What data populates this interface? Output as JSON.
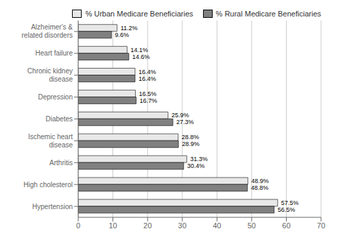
{
  "chart_data": {
    "type": "bar",
    "orientation": "horizontal",
    "categories": [
      "Alzheimer's &\nrelated disorders",
      "Heart failure",
      "Chronic kidney\ndisease",
      "Depression",
      "Diabetes",
      "Ischemic heart\ndisease",
      "Arthritis",
      "High cholesterol",
      "Hypertension"
    ],
    "series": [
      {
        "name": "% Urban Medicare Beneficiaries",
        "color": "#e8e8e8",
        "values": [
          11.2,
          14.1,
          16.4,
          16.5,
          25.9,
          28.8,
          31.3,
          48.9,
          57.5
        ],
        "value_labels": [
          "11.2%",
          "14.1%",
          "16.4%",
          "16.5%",
          "25.9%",
          "28.8%",
          "31.3%",
          "48.9%",
          "57.5%"
        ]
      },
      {
        "name": "% Rural Medicare Beneficiaries",
        "color": "#808080",
        "values": [
          9.6,
          14.6,
          16.4,
          16.7,
          27.3,
          28.9,
          30.4,
          48.8,
          56.5
        ],
        "value_labels": [
          "9.6%",
          "14.6%",
          "16.4%",
          "16.7%",
          "27.3%",
          "28.9%",
          "30.4%",
          "48.8%",
          "56.5%"
        ]
      }
    ],
    "xlim": [
      0,
      70
    ],
    "xticks": [
      0,
      10,
      20,
      30,
      40,
      50,
      60,
      70
    ],
    "grid": true,
    "legend": "upper right",
    "data_labels": true
  }
}
